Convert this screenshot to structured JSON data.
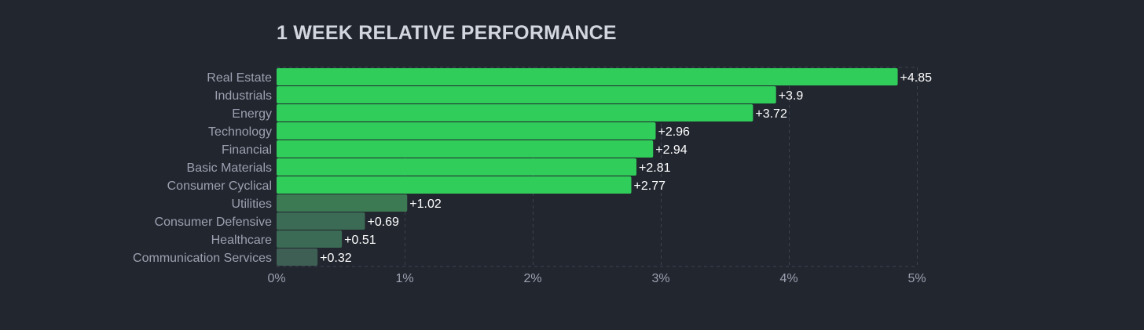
{
  "title": "1 WEEK RELATIVE PERFORMANCE",
  "colors": {
    "background": "#22262f",
    "title": "#d3d6de",
    "axis_text": "#9ca0b0",
    "value_text": "#ffffff",
    "grid": "#3d4250",
    "bar_strong": "#30cd5a",
    "bar_medium": "#3b7a52",
    "bar_weak": "#3b6b55",
    "bar_faint": "#3e5f53"
  },
  "chart_data": {
    "type": "bar",
    "orientation": "horizontal",
    "title": "1 WEEK RELATIVE PERFORMANCE",
    "xlabel": "",
    "ylabel": "",
    "xlim": [
      0,
      5
    ],
    "grid": true,
    "x_ticks": [
      {
        "value": 0,
        "label": "0%"
      },
      {
        "value": 1,
        "label": "1%"
      },
      {
        "value": 2,
        "label": "2%"
      },
      {
        "value": 3,
        "label": "3%"
      },
      {
        "value": 4,
        "label": "4%"
      },
      {
        "value": 5,
        "label": "5%"
      }
    ],
    "categories": [
      "Real Estate",
      "Industrials",
      "Energy",
      "Technology",
      "Financial",
      "Basic Materials",
      "Consumer Cyclical",
      "Utilities",
      "Consumer Defensive",
      "Healthcare",
      "Communication Services"
    ],
    "values": [
      4.85,
      3.9,
      3.72,
      2.96,
      2.94,
      2.81,
      2.77,
      1.02,
      0.69,
      0.51,
      0.32
    ],
    "value_labels": [
      "+4.85",
      "+3.9",
      "+3.72",
      "+2.96",
      "+2.94",
      "+2.81",
      "+2.77",
      "+1.02",
      "+0.69",
      "+0.51",
      "+0.32"
    ],
    "bar_colors": [
      "#30cd5a",
      "#30cd5a",
      "#30cd5a",
      "#30cd5a",
      "#30cd5a",
      "#30cd5a",
      "#30cd5a",
      "#3b7a52",
      "#3b6b55",
      "#3b6b55",
      "#3e5f53"
    ]
  }
}
